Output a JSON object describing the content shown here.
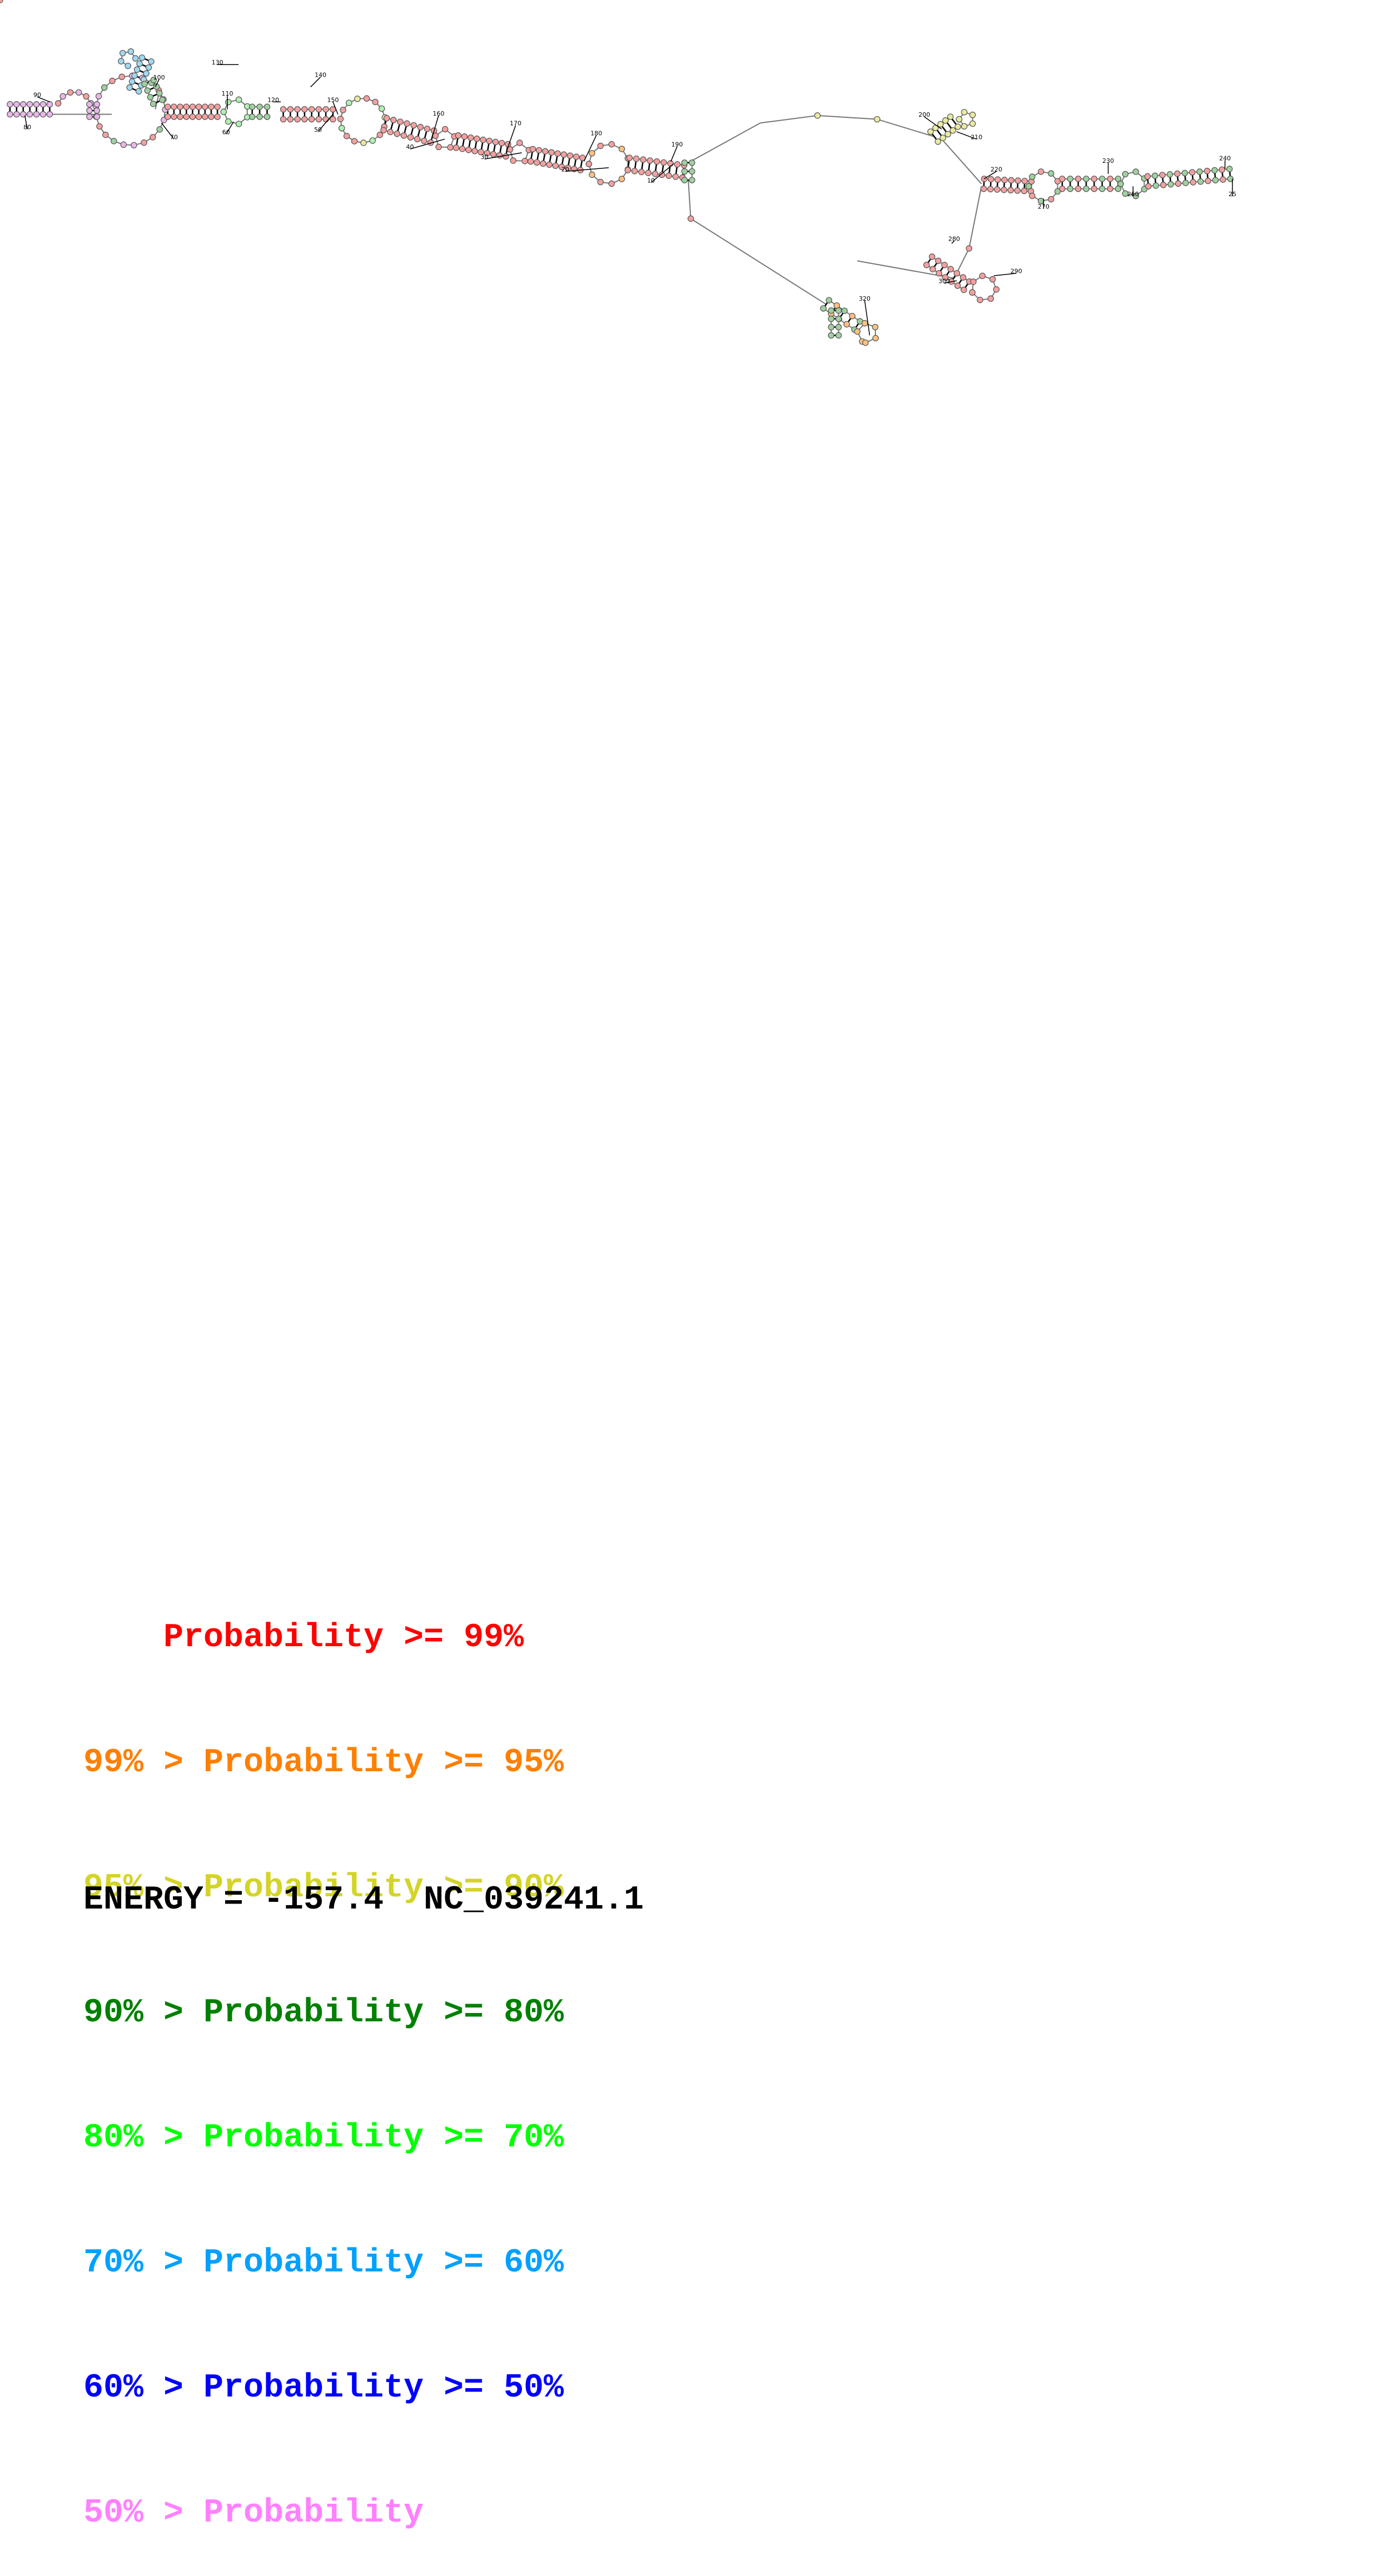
{
  "diagram": {
    "numbers": [
      "10",
      "20",
      "30",
      "40",
      "50",
      "60",
      "70",
      "80",
      "90",
      "100",
      "110",
      "120",
      "130",
      "140",
      "150",
      "160",
      "170",
      "180",
      "190",
      "200",
      "210",
      "220",
      "230",
      "240",
      "25",
      "260",
      "270",
      "280",
      "290",
      "300",
      "320"
    ]
  },
  "legend": [
    {
      "prefix": "    ",
      "text": "Probability >= 99%",
      "color": "#ff0000"
    },
    {
      "prefix": "99% > ",
      "text": "Probability >= 95%",
      "color": "#ff7f00"
    },
    {
      "prefix": "95% > ",
      "text": "Probability >= 90%",
      "color": "#d4d428"
    },
    {
      "prefix": "90% > ",
      "text": "Probability >= 80%",
      "color": "#008000"
    },
    {
      "prefix": "80% > ",
      "text": "Probability >= 70%",
      "color": "#00ff00"
    },
    {
      "prefix": "70% > ",
      "text": "Probability >= 60%",
      "color": "#00a0ff"
    },
    {
      "prefix": "60% > ",
      "text": "Probability >= 50%",
      "color": "#0000ff"
    },
    {
      "prefix": "50% > ",
      "text": "Probability",
      "color": "#ff80ff"
    }
  ],
  "energy_line": "ENERGY = -157.4  NC_039241.1",
  "colors": {
    "red": "#f4a0a0",
    "orange": "#ffc080",
    "yellow": "#eaeaa0",
    "darkgreen": "#a0d0a0",
    "green": "#b0f0b0",
    "cyan": "#a0d8f0",
    "blue": "#a0a0f0",
    "pink": "#e8b8e8"
  }
}
